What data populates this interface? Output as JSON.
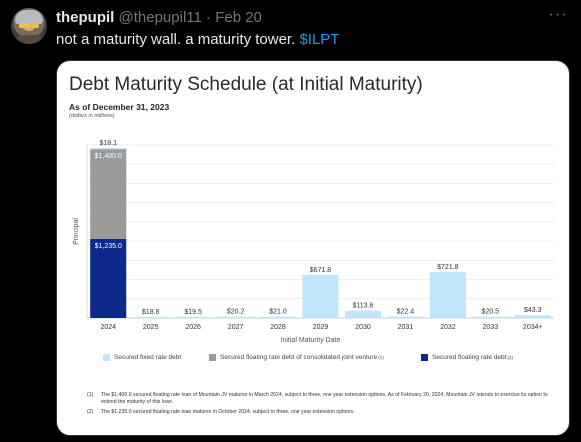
{
  "post": {
    "display_name": "thepupil",
    "handle": "@thepupil11",
    "separator": "·",
    "date": "Feb 20",
    "text": "not a maturity wall. a maturity tower.",
    "cashtag": "$ILPT",
    "more_icon": "ellipsis-icon"
  },
  "slide": {
    "title": "Debt Maturity Schedule (at Initial Maturity)",
    "as_of": "As of December 31, 2023",
    "units": "(dollars in millions)",
    "legend": [
      {
        "label": "Secured fixed rate debt",
        "sup": "",
        "color": "#bfe6fa"
      },
      {
        "label": "Secured floating rate debt of consolidated joint venture",
        "sup": "(1)",
        "color": "#9a9a9a"
      },
      {
        "label": "Secured floating rate debt",
        "sup": "(2)",
        "color": "#0d2a8a"
      }
    ],
    "notes": [
      {
        "num": "(1)",
        "text": "The $1,400.0 secured floating rate loan of Mountain JV matures in March 2024, subject to three, one year extension options. As of February 20, 2024, Mountain JV intends to exercise its option to extend the maturity of this loan."
      },
      {
        "num": "(2)",
        "text": "The $1,235.0 secured floating rate loan matures in October 2024, subject to three, one year extension options."
      }
    ]
  },
  "chart_data": {
    "type": "bar",
    "stacked": true,
    "xlabel": "Initial Maturity Date",
    "ylabel": "Principal",
    "categories": [
      "2024",
      "2025",
      "2026",
      "2027",
      "2028",
      "2029",
      "2030",
      "2031",
      "2032",
      "2033",
      "2034+"
    ],
    "series": [
      {
        "name": "Secured floating rate debt",
        "color": "#0d2a8a",
        "values": [
          1235.0,
          0,
          0,
          0,
          0,
          0,
          0,
          0,
          0,
          0,
          0
        ]
      },
      {
        "name": "Secured floating rate debt of consolidated joint venture",
        "color": "#9a9a9a",
        "values": [
          1400.0,
          0,
          0,
          0,
          0,
          0,
          0,
          0,
          0,
          0,
          0
        ]
      },
      {
        "name": "Secured fixed rate debt",
        "color": "#bfe6fa",
        "values": [
          18.1,
          18.8,
          19.5,
          20.2,
          21.0,
          671.8,
          113.6,
          22.4,
          721.8,
          20.5,
          43.3
        ]
      }
    ],
    "segment_labels": [
      {
        "category": "2024",
        "series": "Secured floating rate debt",
        "text": "$1,235.0"
      },
      {
        "category": "2024",
        "series": "Secured floating rate debt of consolidated joint venture",
        "text": "$1,400.0"
      }
    ],
    "top_labels": [
      "$18.1",
      "$18.8",
      "$19.5",
      "$20.2",
      "$21.0",
      "$671.8",
      "$113.6",
      "$22.4",
      "$721.8",
      "$20.5",
      "$43.3"
    ],
    "ylim": [
      0,
      2700
    ],
    "grid": true,
    "legend_position": "bottom"
  }
}
